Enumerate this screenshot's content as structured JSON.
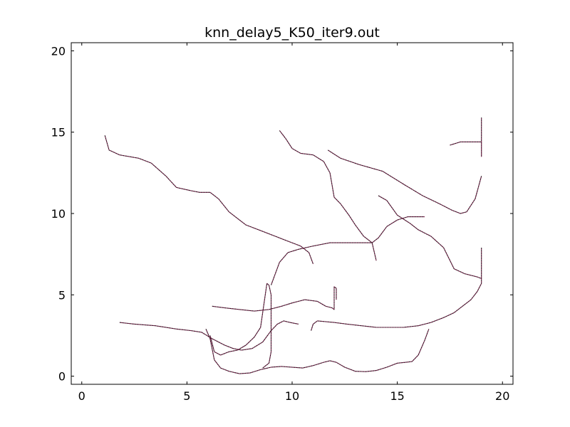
{
  "chart_data": {
    "type": "line",
    "title": "knn_delay5_K50_iter9.out",
    "xlabel": "",
    "ylabel": "",
    "xlim": [
      -0.5,
      20.5
    ],
    "ylim": [
      -0.5,
      20.5
    ],
    "xticks": [
      0,
      5,
      10,
      15,
      20
    ],
    "yticks": [
      0,
      5,
      10,
      15,
      20
    ],
    "xtick_labels": [
      "0",
      "5",
      "10",
      "15",
      "20"
    ],
    "ytick_labels": [
      "0",
      "5",
      "10",
      "15",
      "20"
    ],
    "grid": false,
    "colors": {
      "stroke_a": "#1a1a1a",
      "stroke_b": "#7a1f4a",
      "axes": "#000000"
    },
    "series": [
      {
        "x": [
          1.1,
          1.3,
          1.8,
          2.7,
          3.3,
          4.0,
          4.5,
          5.2,
          5.6,
          6.1,
          6.5,
          7.0,
          7.8,
          8.8,
          9.6,
          10.4,
          10.8,
          11.0
        ],
        "y": [
          14.8,
          13.9,
          13.6,
          13.4,
          13.1,
          12.3,
          11.6,
          11.4,
          11.3,
          11.3,
          10.9,
          10.1,
          9.3,
          8.8,
          8.4,
          8.0,
          7.6,
          6.9
        ]
      },
      {
        "x": [
          9.4,
          9.7,
          10.0,
          10.4,
          11.0,
          11.5,
          11.8,
          12.0,
          12.3,
          12.7,
          13.0,
          13.4,
          13.8,
          14.0
        ],
        "y": [
          15.1,
          14.6,
          14.0,
          13.7,
          13.6,
          13.2,
          12.5,
          11.0,
          10.6,
          9.9,
          9.3,
          8.6,
          8.2,
          7.1
        ]
      },
      {
        "x": [
          11.7,
          12.3,
          13.2,
          14.3,
          15.3,
          16.2,
          17.0,
          17.6,
          18.0,
          18.3,
          18.7,
          19.0
        ],
        "y": [
          13.9,
          13.4,
          13.0,
          12.6,
          11.8,
          11.1,
          10.6,
          10.2,
          10.0,
          10.1,
          10.9,
          12.3
        ]
      },
      {
        "x": [
          17.5,
          18.0,
          18.5,
          19.0,
          19.0,
          19.0,
          19.0
        ],
        "y": [
          14.2,
          14.4,
          14.4,
          14.4,
          13.5,
          15.0,
          15.9
        ]
      },
      {
        "x": [
          14.1,
          14.5,
          15.0,
          15.6,
          16.0,
          16.6,
          17.2,
          17.7,
          18.2,
          18.8,
          19.0
        ],
        "y": [
          11.1,
          10.8,
          9.9,
          9.4,
          9.0,
          8.6,
          7.9,
          6.6,
          6.3,
          6.1,
          6.0
        ]
      },
      {
        "x": [
          9.0,
          9.4,
          9.8,
          10.3,
          11.0,
          11.8,
          12.6,
          13.5,
          13.8,
          14.1,
          14.5,
          15.0,
          15.5,
          16.0,
          16.3
        ],
        "y": [
          5.6,
          7.0,
          7.6,
          7.8,
          8.0,
          8.2,
          8.2,
          8.2,
          8.2,
          8.5,
          9.2,
          9.6,
          9.8,
          9.8,
          9.8
        ]
      },
      {
        "x": [
          6.2,
          6.8,
          7.5,
          8.2,
          8.9,
          9.5,
          10.0,
          10.6,
          11.2,
          11.6,
          11.9,
          12.0,
          12.0,
          12.1,
          12.1
        ],
        "y": [
          4.3,
          4.2,
          4.1,
          4.0,
          4.1,
          4.3,
          4.5,
          4.7,
          4.6,
          4.3,
          4.2,
          4.1,
          5.5,
          5.4,
          4.7
        ]
      },
      {
        "x": [
          1.8,
          2.5,
          3.5,
          4.5,
          5.2,
          5.7,
          6.2,
          6.8,
          7.2,
          7.6,
          8.1,
          8.6,
          9.0,
          9.3,
          9.6,
          9.9,
          10.3
        ],
        "y": [
          3.3,
          3.2,
          3.1,
          2.9,
          2.8,
          2.7,
          2.3,
          1.9,
          1.7,
          1.6,
          1.7,
          2.1,
          2.8,
          3.2,
          3.4,
          3.3,
          3.2
        ]
      },
      {
        "x": [
          8.6,
          8.9,
          9.0,
          9.0,
          9.0,
          8.9,
          8.8,
          8.5,
          8.2,
          7.8,
          7.4,
          7.0,
          6.6,
          6.3,
          6.1
        ],
        "y": [
          0.5,
          0.8,
          1.5,
          3.0,
          5.0,
          5.6,
          5.7,
          3.0,
          2.4,
          1.9,
          1.6,
          1.5,
          1.3,
          1.5,
          2.5
        ]
      },
      {
        "x": [
          5.9,
          6.1,
          6.3,
          6.6,
          7.0,
          7.5,
          8.0,
          8.5,
          9.0,
          9.5,
          10.0,
          10.5,
          11.0,
          11.5,
          11.8,
          12.1,
          12.5,
          13.0,
          13.5,
          14.0,
          14.5,
          15.0,
          15.4,
          15.7,
          16.0,
          16.3,
          16.5
        ],
        "y": [
          2.9,
          2.3,
          1.0,
          0.5,
          0.3,
          0.15,
          0.2,
          0.4,
          0.55,
          0.6,
          0.55,
          0.5,
          0.65,
          0.85,
          0.95,
          0.85,
          0.55,
          0.3,
          0.28,
          0.35,
          0.55,
          0.8,
          0.85,
          0.9,
          1.3,
          2.2,
          2.9
        ]
      },
      {
        "x": [
          10.9,
          11.0,
          11.2,
          11.6,
          12.0,
          12.6,
          13.3,
          14.0,
          14.6,
          15.3,
          16.0,
          16.6,
          17.2,
          17.7,
          18.1,
          18.5,
          18.8,
          19.0,
          19.0,
          19.0
        ],
        "y": [
          2.8,
          3.2,
          3.4,
          3.35,
          3.3,
          3.2,
          3.1,
          3.0,
          3.0,
          3.0,
          3.1,
          3.3,
          3.6,
          3.9,
          4.3,
          4.7,
          5.2,
          5.7,
          6.8,
          7.9
        ]
      }
    ]
  }
}
